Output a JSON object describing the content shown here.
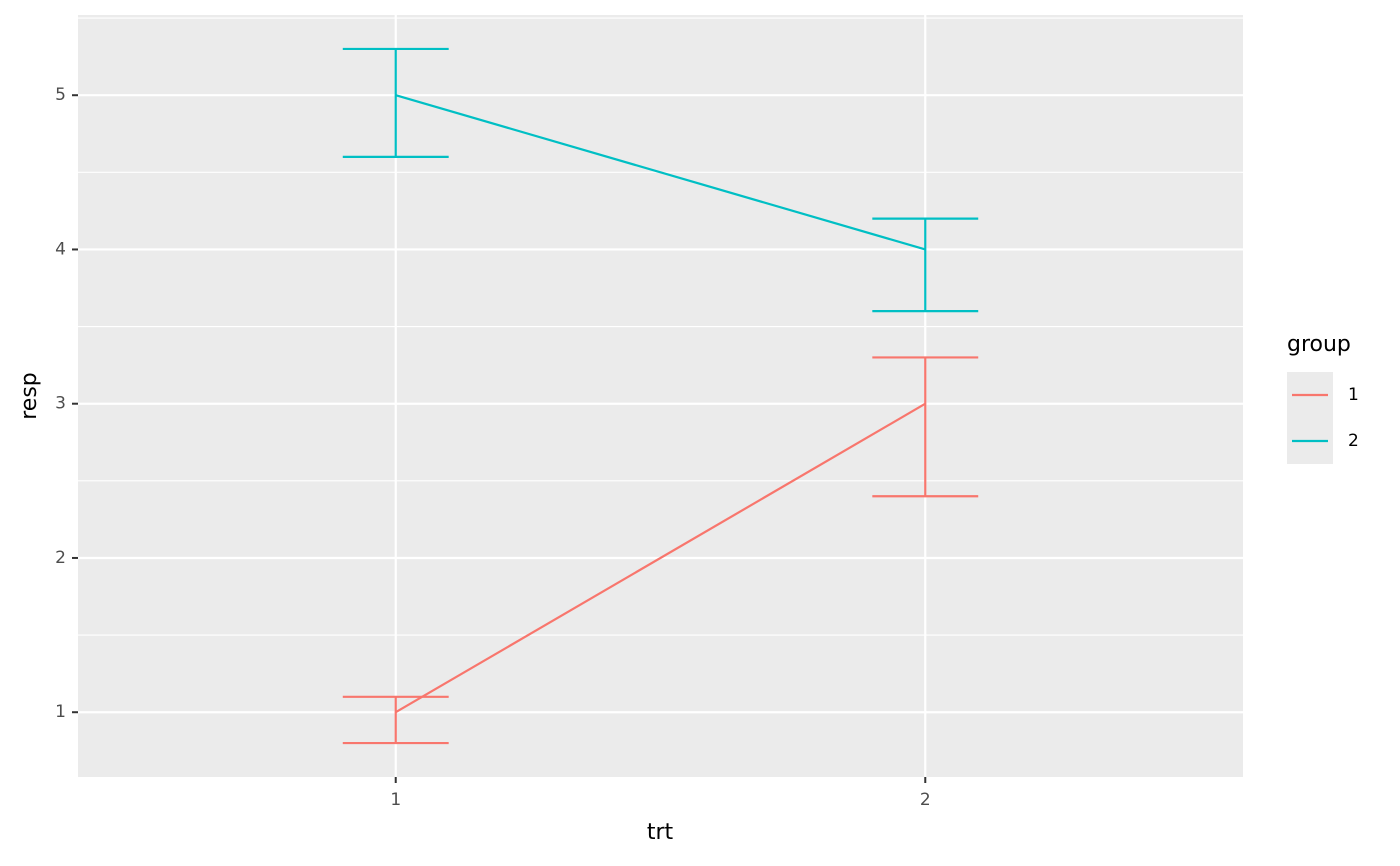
{
  "chart_data": {
    "type": "errorbar-line",
    "x_label": "trt",
    "y_label": "resp",
    "categories": [
      "1",
      "2"
    ],
    "ylim": [
      0.58,
      5.52
    ],
    "yticks": [
      1,
      2,
      3,
      4,
      5
    ],
    "grid": true,
    "legend_title": "group",
    "legend_position": "right",
    "series": [
      {
        "name": "1",
        "color": "#F8766D",
        "values": [
          1,
          3
        ],
        "lower": [
          0.8,
          2.4
        ],
        "upper": [
          1.1,
          3.3
        ]
      },
      {
        "name": "2",
        "color": "#00BFC4",
        "values": [
          5,
          4
        ],
        "lower": [
          4.6,
          3.6
        ],
        "upper": [
          5.3,
          4.2
        ]
      }
    ]
  }
}
